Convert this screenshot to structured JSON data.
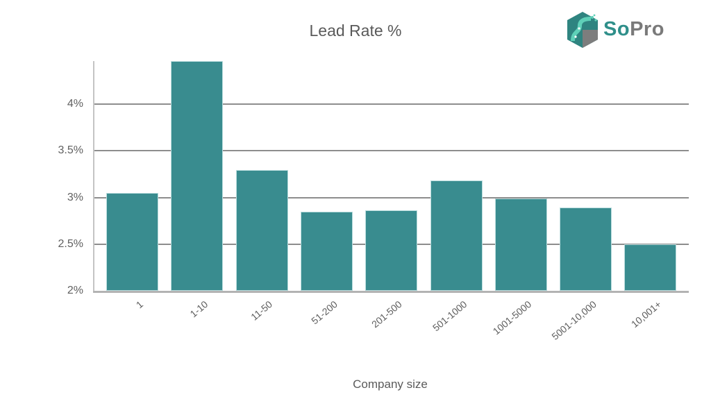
{
  "title": "Lead Rate %",
  "logo": {
    "text_part1": "So",
    "text_part2": "Pro",
    "icon": "hexagon-circuit-logo-icon",
    "colors": {
      "teal": "#2f8f8a",
      "gray": "#7a7a7a"
    }
  },
  "x_axis_label": "Company size",
  "y_ticks": [
    "2%",
    "2.5%",
    "3%",
    "3.5%",
    "4%"
  ],
  "x_ticks": [
    "1",
    "1-10",
    "11-50",
    "51-200",
    "201-500",
    "501-1000",
    "1001-5000",
    "5001-10,000",
    "10,001+"
  ],
  "colors": {
    "bar": "#398c8f",
    "gridline": "#8d8d8d",
    "text": "#5f5f5f"
  },
  "chart_data": {
    "type": "bar",
    "title": "Lead Rate %",
    "xlabel": "Company size",
    "ylabel": "",
    "categories": [
      "1",
      "1-10",
      "11-50",
      "51-200",
      "201-500",
      "501-1000",
      "1001-5000",
      "5001-10,000",
      "10,001+"
    ],
    "values": [
      3.05,
      4.46,
      3.29,
      2.85,
      2.86,
      3.18,
      2.99,
      2.89,
      2.5
    ],
    "unit": "%",
    "ylim": [
      2,
      4.46
    ],
    "yticks": [
      2,
      2.5,
      3,
      3.5,
      4
    ],
    "grid": true,
    "legend": null
  }
}
